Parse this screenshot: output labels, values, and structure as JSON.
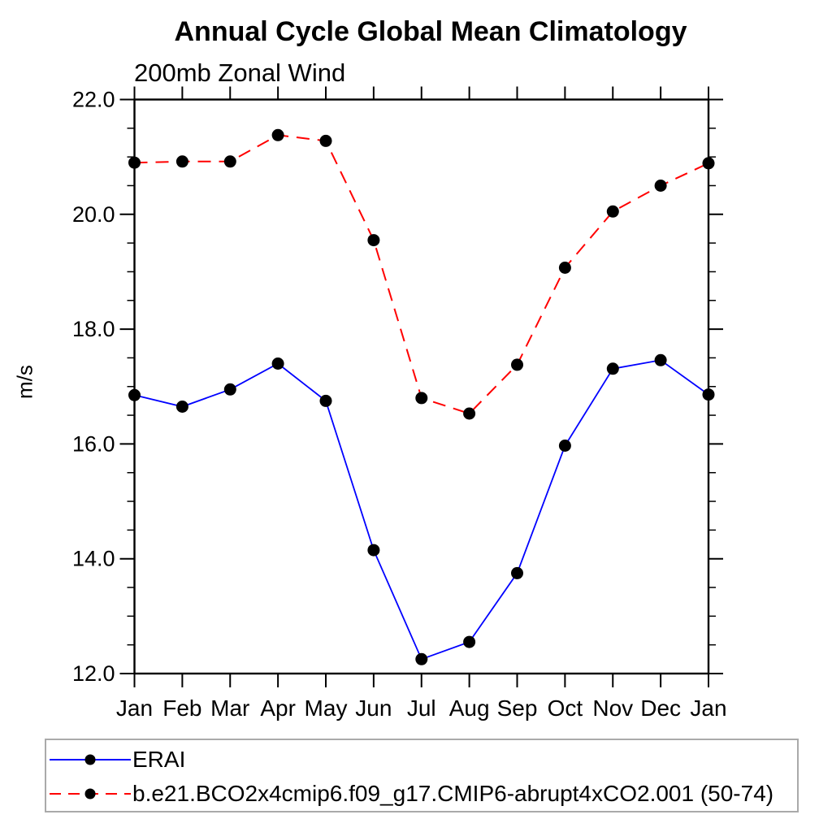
{
  "chart_data": {
    "type": "line",
    "title": "Annual Cycle Global Mean Climatology",
    "subtitle": "200mb Zonal Wind",
    "ylabel": "m/s",
    "xlabel": "",
    "categories": [
      "Jan",
      "Feb",
      "Mar",
      "Apr",
      "May",
      "Jun",
      "Jul",
      "Aug",
      "Sep",
      "Oct",
      "Nov",
      "Dec",
      "Jan"
    ],
    "ylim": [
      12.0,
      22.0
    ],
    "ytick_labels": [
      "12.0",
      "14.0",
      "16.0",
      "18.0",
      "20.0",
      "22.0"
    ],
    "ytick_major_interval": 2.0,
    "ytick_minor_interval": 0.5,
    "grid": false,
    "frame": "box-with-outward-ticks",
    "legend_position": "bottom-left-box",
    "marker": "filled-circle",
    "marker_color": "#000000",
    "axis_color": "#000000",
    "series": [
      {
        "name": "ERAI",
        "color": "#0000ff",
        "line_style": "solid",
        "values": [
          16.85,
          16.65,
          16.95,
          17.4,
          16.75,
          14.15,
          12.25,
          12.55,
          13.75,
          15.97,
          17.31,
          17.46,
          16.86
        ]
      },
      {
        "name": "b.e21.BCO2x4cmip6.f09_g17.CMIP6-abrupt4xCO2.001 (50-74)",
        "color": "#ff0000",
        "line_style": "dashed",
        "values": [
          20.9,
          20.92,
          20.92,
          21.38,
          21.28,
          19.55,
          16.8,
          16.53,
          17.38,
          19.07,
          20.05,
          20.5,
          20.89
        ]
      }
    ]
  }
}
